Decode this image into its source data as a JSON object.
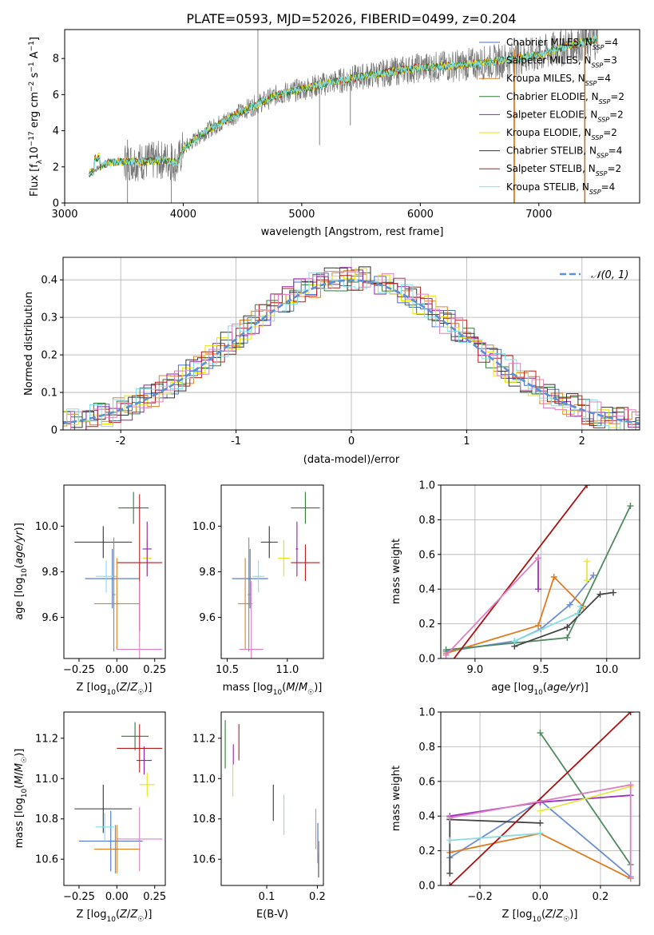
{
  "figure_title": "PLATE=0593, MJD=52026, FIBERID=0499, z=0.204",
  "colors": {
    "chabrier_miles": "#4472c4",
    "salpeter_miles": "#8a8a8a",
    "kroupa_miles": "#e08020",
    "chabrier_elodie": "#2e7d32",
    "salpeter_elodie": "#8e24aa",
    "kroupa_elodie": "#e6e600",
    "chabrier_stelib": "#333333",
    "salpeter_stelib": "#b71c1c",
    "kroupa_stelib": "#80deea",
    "line_blue": "#6b8fd6",
    "line_orange": "#e07a1f",
    "line_green": "#4f8a5e",
    "line_purple": "#9b30c0",
    "line_yellow": "#e3e84a",
    "line_dark": "#444444",
    "line_red": "#aa1111",
    "line_cyan": "#86dde0",
    "line_pink": "#e07fc0",
    "gaussian": "#5b8fd6",
    "spectrum": "#777777"
  },
  "chart_data": [
    {
      "id": "spectrum",
      "type": "line",
      "xlabel": "wavelength [Angstrom, rest frame]",
      "ylabel": "Flux [f_λ 10^-17 erg cm^-2 s^-1 A^-1]",
      "xlim": [
        3000,
        7850
      ],
      "ylim": [
        0,
        9.6
      ],
      "xticks": [
        3000,
        4000,
        5000,
        6000,
        7000
      ],
      "yticks": [
        0,
        2,
        4,
        6,
        8
      ],
      "grid": false,
      "legend_position": "right",
      "legend": [
        {
          "label": "Chabrier MILES, N_SSP=4",
          "base": "Chabrier MILES, N",
          "sub": "SSP",
          "tail": "=4",
          "color": "chabrier_miles"
        },
        {
          "label": "Salpeter MILES, N_SSP=3",
          "base": "Salpeter MILES, N",
          "sub": "SSP",
          "tail": "=3",
          "color": "salpeter_miles"
        },
        {
          "label": "Kroupa MILES, N_SSP=4",
          "base": "Kroupa MILES, N",
          "sub": "SSP",
          "tail": "=4",
          "color": "kroupa_miles"
        },
        {
          "label": "Chabrier ELODIE, N_SSP=2",
          "base": "Chabrier ELODIE, N",
          "sub": "SSP",
          "tail": "=2",
          "color": "chabrier_elodie"
        },
        {
          "label": "Salpeter ELODIE, N_SSP=2",
          "base": "Salpeter ELODIE, N",
          "sub": "SSP",
          "tail": "=2",
          "color": "salpeter_elodie"
        },
        {
          "label": "Kroupa ELODIE, N_SSP=2",
          "base": "Kroupa ELODIE, N",
          "sub": "SSP",
          "tail": "=2",
          "color": "kroupa_elodie"
        },
        {
          "label": "Chabrier STELIB, N_SSP=4",
          "base": "Chabrier STELIB, N",
          "sub": "SSP",
          "tail": "=4",
          "color": "chabrier_stelib"
        },
        {
          "label": "Salpeter STELIB, N_SSP=2",
          "base": "Salpeter STELIB, N",
          "sub": "SSP",
          "tail": "=2",
          "color": "salpeter_stelib"
        },
        {
          "label": "Kroupa STELIB, N_SSP=4",
          "base": "Kroupa STELIB, N",
          "sub": "SSP",
          "tail": "=4",
          "color": "kroupa_stelib"
        }
      ],
      "model_continuum": {
        "x": [
          3200,
          3350,
          3500,
          3700,
          3850,
          3950,
          4000,
          4200,
          4500,
          4800,
          5000,
          5200,
          5500,
          5800,
          6000,
          6300,
          6600,
          7000,
          7300,
          7500
        ],
        "y": [
          1.6,
          2.2,
          2.3,
          2.3,
          2.4,
          2.2,
          3.0,
          4.0,
          5.1,
          6.0,
          6.3,
          6.6,
          7.0,
          7.3,
          7.5,
          7.6,
          7.8,
          8.2,
          8.8,
          9.1
        ]
      },
      "spikes": [
        {
          "x": 4630,
          "y0": 0,
          "y1": 9.6
        },
        {
          "x": 6790,
          "y0": 0,
          "y1": 8.6
        },
        {
          "x": 7390,
          "y0": 0,
          "y1": 9.1
        },
        {
          "x": 3530,
          "y0": 0,
          "y1": 3.5
        },
        {
          "x": 3900,
          "y0": 0,
          "y1": 3.3
        },
        {
          "x": 5150,
          "y0": 3.2,
          "y1": 6.8
        },
        {
          "x": 5410,
          "y0": 4.3,
          "y1": 7.4
        }
      ]
    },
    {
      "id": "residuals",
      "type": "line",
      "xlabel": "(data-model)/error",
      "ylabel": "Normed distribution",
      "xlim": [
        -2.5,
        2.5
      ],
      "ylim": [
        0,
        0.46
      ],
      "xticks": [
        -2,
        -1,
        0,
        1,
        2
      ],
      "yticks": [
        0.0,
        0.1,
        0.2,
        0.3,
        0.4
      ],
      "grid": true,
      "legend_position": "top-right",
      "legend": [
        {
          "label": "𝒩(0, 1)",
          "color": "gaussian",
          "dash": true
        }
      ],
      "gaussian": {
        "mu": 0,
        "sigma": 1
      }
    },
    {
      "id": "age_vs_Z",
      "type": "scatter",
      "xlabel": "Z [log10(Z/Z☉)]",
      "ylabel": "age [log10(age/yr)]",
      "xlim": [
        -0.35,
        0.32
      ],
      "ylim": [
        9.42,
        10.18
      ],
      "xticks": [
        -0.25,
        0.0,
        0.25
      ],
      "xticklabels": [
        "−0.25",
        "0.00",
        "0.25"
      ],
      "yticks": [
        9.6,
        9.8,
        10.0
      ],
      "yticklabels": [
        "9.6",
        "9.8",
        "10.0"
      ],
      "grid": false,
      "points": [
        {
          "color": "chabrier_stelib",
          "x": -0.09,
          "xerr": 0.19,
          "y": 9.93,
          "yerr": 0.07
        },
        {
          "color": "chabrier_elodie",
          "x": 0.11,
          "xerr": 0.1,
          "y": 10.08,
          "yerr": 0.07
        },
        {
          "color": "chabrier_miles",
          "x": -0.03,
          "xerr": 0.18,
          "y": 9.77,
          "yerr": 0.13
        },
        {
          "color": "kroupa_stelib",
          "x": -0.07,
          "xerr": 0.07,
          "y": 9.78,
          "yerr": 0.07
        },
        {
          "color": "kroupa_elodie",
          "x": 0.2,
          "xerr": 0.03,
          "y": 9.86,
          "yerr": 0.08
        },
        {
          "color": "salpeter_elodie",
          "x": 0.2,
          "xerr": 0.03,
          "y": 9.9,
          "yerr": 0.12
        },
        {
          "color": "salpeter_stelib",
          "x": 0.15,
          "xerr": 0.15,
          "y": 9.84,
          "yerr": 0.3
        },
        {
          "color": "kroupa_miles",
          "x": 0.0,
          "xerr": 0.15,
          "y": 9.66,
          "yerr": 0.2
        },
        {
          "color": "line_pink",
          "x": 0.15,
          "xerr": 0.15,
          "y": 9.46,
          "yerr": 0.3
        },
        {
          "color": "salpeter_miles",
          "x": -0.02,
          "xerr": 0.01,
          "y": 9.7,
          "yerr": 0.25
        }
      ]
    },
    {
      "id": "age_vs_mass",
      "type": "scatter",
      "xlabel": "mass [log10(M/M☉)]",
      "ylabel": "",
      "xlim": [
        10.45,
        11.3
      ],
      "ylim": [
        9.42,
        10.18
      ],
      "xticks": [
        10.5,
        11.0
      ],
      "xticklabels": [
        "10.5",
        "11.0"
      ],
      "yticks": [
        9.6,
        9.8,
        10.0
      ],
      "yticklabels": [
        "9.6",
        "9.8",
        "10.0"
      ],
      "grid": false,
      "points": [
        {
          "color": "chabrier_stelib",
          "x": 10.85,
          "xerr": 0.07,
          "y": 9.93,
          "yerr": 0.07
        },
        {
          "color": "chabrier_elodie",
          "x": 11.15,
          "xerr": 0.12,
          "y": 10.08,
          "yerr": 0.07
        },
        {
          "color": "chabrier_miles",
          "x": 10.69,
          "xerr": 0.15,
          "y": 9.77,
          "yerr": 0.13
        },
        {
          "color": "kroupa_stelib",
          "x": 10.76,
          "xerr": 0.05,
          "y": 9.78,
          "yerr": 0.07
        },
        {
          "color": "kroupa_elodie",
          "x": 10.97,
          "xerr": 0.05,
          "y": 9.86,
          "yerr": 0.08
        },
        {
          "color": "salpeter_elodie",
          "x": 11.08,
          "xerr": 0.01,
          "y": 9.9,
          "yerr": 0.12
        },
        {
          "color": "salpeter_stelib",
          "x": 11.15,
          "xerr": 0.12,
          "y": 9.84,
          "yerr": 0.08
        },
        {
          "color": "kroupa_miles",
          "x": 10.65,
          "xerr": 0.06,
          "y": 9.66,
          "yerr": 0.2
        },
        {
          "color": "line_pink",
          "x": 10.7,
          "xerr": 0.1,
          "y": 9.46,
          "yerr": 0.3
        },
        {
          "color": "salpeter_miles",
          "x": 10.68,
          "xerr": 0.01,
          "y": 9.7,
          "yerr": 0.25
        }
      ]
    },
    {
      "id": "weight_vs_age",
      "type": "line",
      "xlabel": "age [log10(age/yr)]",
      "ylabel": "mass weight",
      "xlim": [
        8.74,
        10.25
      ],
      "ylim": [
        0,
        1.0
      ],
      "xticks": [
        9.0,
        9.5,
        10.0
      ],
      "xticklabels": [
        "9.0",
        "9.5",
        "10.0"
      ],
      "yticks": [
        0.0,
        0.2,
        0.4,
        0.6,
        0.8,
        1.0
      ],
      "yticklabels": [
        "0.0",
        "0.2",
        "0.4",
        "0.6",
        "0.8",
        "1.0"
      ],
      "grid": true,
      "series": [
        {
          "color": "line_blue",
          "x": [
            8.78,
            9.3,
            9.5,
            9.72,
            9.9
          ],
          "y": [
            0.04,
            0.1,
            0.17,
            0.31,
            0.48
          ]
        },
        {
          "color": "line_orange",
          "x": [
            8.78,
            9.48,
            9.6,
            9.82
          ],
          "y": [
            0.03,
            0.19,
            0.47,
            0.3
          ]
        },
        {
          "color": "line_green",
          "x": [
            8.78,
            9.7,
            10.18
          ],
          "y": [
            0.05,
            0.12,
            0.88
          ]
        },
        {
          "color": "line_purple",
          "x": [
            9.48,
            9.48
          ],
          "y": [
            0.4,
            0.58
          ]
        },
        {
          "color": "line_yellow",
          "x": [
            9.85,
            9.85
          ],
          "y": [
            0.45,
            0.56
          ]
        },
        {
          "color": "line_dark",
          "x": [
            9.3,
            9.7,
            9.95,
            10.05
          ],
          "y": [
            0.07,
            0.18,
            0.37,
            0.38
          ]
        },
        {
          "color": "line_red",
          "x": [
            8.78,
            9.85
          ],
          "y": [
            -0.06,
            1.0
          ]
        },
        {
          "color": "line_cyan",
          "x": [
            9.3,
            9.78,
            9.8
          ],
          "y": [
            0.1,
            0.26,
            0.3
          ]
        },
        {
          "color": "line_pink",
          "x": [
            8.78,
            9.48
          ],
          "y": [
            0.02,
            0.58
          ]
        }
      ]
    },
    {
      "id": "mass_vs_Z",
      "type": "scatter",
      "xlabel": "Z [log10(Z/Z☉)]",
      "ylabel": "mass [log10(M/M☉)]",
      "xlim": [
        -0.35,
        0.32
      ],
      "ylim": [
        10.47,
        11.33
      ],
      "xticks": [
        -0.25,
        0.0,
        0.25
      ],
      "xticklabels": [
        "−0.25",
        "0.00",
        "0.25"
      ],
      "yticks": [
        10.6,
        10.8,
        11.0,
        11.2
      ],
      "yticklabels": [
        "10.6",
        "10.8",
        "11.0",
        "11.2"
      ],
      "grid": false,
      "points": [
        {
          "color": "chabrier_stelib",
          "x": -0.09,
          "xerr": 0.19,
          "y": 10.85,
          "yerr": 0.12
        },
        {
          "color": "chabrier_elodie",
          "x": 0.12,
          "xerr": 0.09,
          "y": 11.21,
          "yerr": 0.07
        },
        {
          "color": "chabrier_miles",
          "x": -0.04,
          "xerr": 0.21,
          "y": 10.69,
          "yerr": 0.15
        },
        {
          "color": "kroupa_stelib",
          "x": -0.08,
          "xerr": 0.06,
          "y": 10.76,
          "yerr": 0.07
        },
        {
          "color": "kroupa_elodie",
          "x": 0.2,
          "xerr": 0.05,
          "y": 10.97,
          "yerr": 0.06
        },
        {
          "color": "salpeter_elodie",
          "x": 0.18,
          "xerr": 0.05,
          "y": 11.09,
          "yerr": 0.07
        },
        {
          "color": "salpeter_stelib",
          "x": 0.15,
          "xerr": 0.15,
          "y": 11.15,
          "yerr": 0.12
        },
        {
          "color": "kroupa_miles",
          "x": 0.0,
          "xerr": 0.15,
          "y": 10.65,
          "yerr": 0.12
        },
        {
          "color": "line_pink",
          "x": 0.15,
          "xerr": 0.15,
          "y": 10.7,
          "yerr": 0.16
        },
        {
          "color": "salpeter_miles",
          "x": -0.01,
          "xerr": 0.01,
          "y": 10.65,
          "yerr": 0.12
        }
      ]
    },
    {
      "id": "mass_vs_ebv",
      "type": "scatter",
      "xlabel": "E(B-V)",
      "ylabel": "",
      "xlim": [
        0.01,
        0.212
      ],
      "ylim": [
        10.47,
        11.33
      ],
      "xticks": [
        0.1,
        0.2
      ],
      "xticklabels": [
        "0.1",
        "0.2"
      ],
      "yticks": [
        10.6,
        10.8,
        11.0,
        11.2
      ],
      "yticklabels": [
        "10.6",
        "10.8",
        "11.0",
        "11.2"
      ],
      "grid": false,
      "points": [
        {
          "color": "chabrier_elodie",
          "x": 0.018,
          "y": 11.17,
          "yerr": 0.12
        },
        {
          "color": "kroupa_elodie",
          "x": 0.033,
          "y": 10.99,
          "yerr": 0.08
        },
        {
          "color": "salpeter_elodie",
          "x": 0.034,
          "y": 11.12,
          "yerr": 0.05
        },
        {
          "color": "salpeter_stelib",
          "x": 0.045,
          "y": 11.18,
          "yerr": 0.09
        },
        {
          "color": "chabrier_stelib",
          "x": 0.113,
          "y": 10.88,
          "yerr": 0.09
        },
        {
          "color": "kroupa_stelib",
          "x": 0.134,
          "y": 10.82,
          "yerr": 0.1
        },
        {
          "color": "line_pink",
          "x": 0.197,
          "y": 10.75,
          "yerr": 0.1
        },
        {
          "color": "chabrier_miles",
          "x": 0.201,
          "y": 10.68,
          "yerr": 0.1
        },
        {
          "color": "kroupa_miles",
          "x": 0.203,
          "y": 10.6,
          "yerr": 0.09
        },
        {
          "color": "salpeter_miles",
          "x": 0.202,
          "y": 10.57,
          "yerr": 0.06
        }
      ]
    },
    {
      "id": "weight_vs_Z",
      "type": "line",
      "xlabel": "Z [log10(Z/Z☉)]",
      "ylabel": "mass weight",
      "xlim": [
        -0.33,
        0.33
      ],
      "ylim": [
        0,
        1.0
      ],
      "xticks": [
        -0.2,
        0.0,
        0.2
      ],
      "xticklabels": [
        "−0.2",
        "0.0",
        "0.2"
      ],
      "yticks": [
        0.0,
        0.2,
        0.4,
        0.6,
        0.8,
        1.0
      ],
      "yticklabels": [
        "0.0",
        "0.2",
        "0.4",
        "0.6",
        "0.8",
        "1.0"
      ],
      "grid": true,
      "series": [
        {
          "color": "line_blue",
          "x": [
            -0.3,
            0.0,
            0.3
          ],
          "y": [
            0.16,
            0.49,
            0.05
          ]
        },
        {
          "color": "line_orange",
          "x": [
            -0.3,
            0.0,
            0.3
          ],
          "y": [
            0.19,
            0.3,
            0.04
          ]
        },
        {
          "color": "line_green",
          "x": [
            0.0,
            0.3
          ],
          "y": [
            0.88,
            0.12
          ]
        },
        {
          "color": "line_purple",
          "x": [
            -0.3,
            0.0,
            0.3
          ],
          "y": [
            0.4,
            0.48,
            0.52
          ]
        },
        {
          "color": "line_yellow",
          "x": [
            0.0,
            0.3
          ],
          "y": [
            0.43,
            0.57
          ]
        },
        {
          "color": "line_dark",
          "x": [
            -0.3,
            -0.3,
            0.0
          ],
          "y": [
            0.07,
            0.38,
            0.36
          ]
        },
        {
          "color": "line_red",
          "x": [
            -0.3,
            0.3
          ],
          "y": [
            0.0,
            1.0
          ]
        },
        {
          "color": "line_cyan",
          "x": [
            -0.3,
            0.0
          ],
          "y": [
            0.26,
            0.3
          ]
        },
        {
          "color": "line_pink",
          "x": [
            -0.3,
            0.3,
            0.3
          ],
          "y": [
            0.39,
            0.58,
            0.04
          ]
        }
      ]
    }
  ]
}
